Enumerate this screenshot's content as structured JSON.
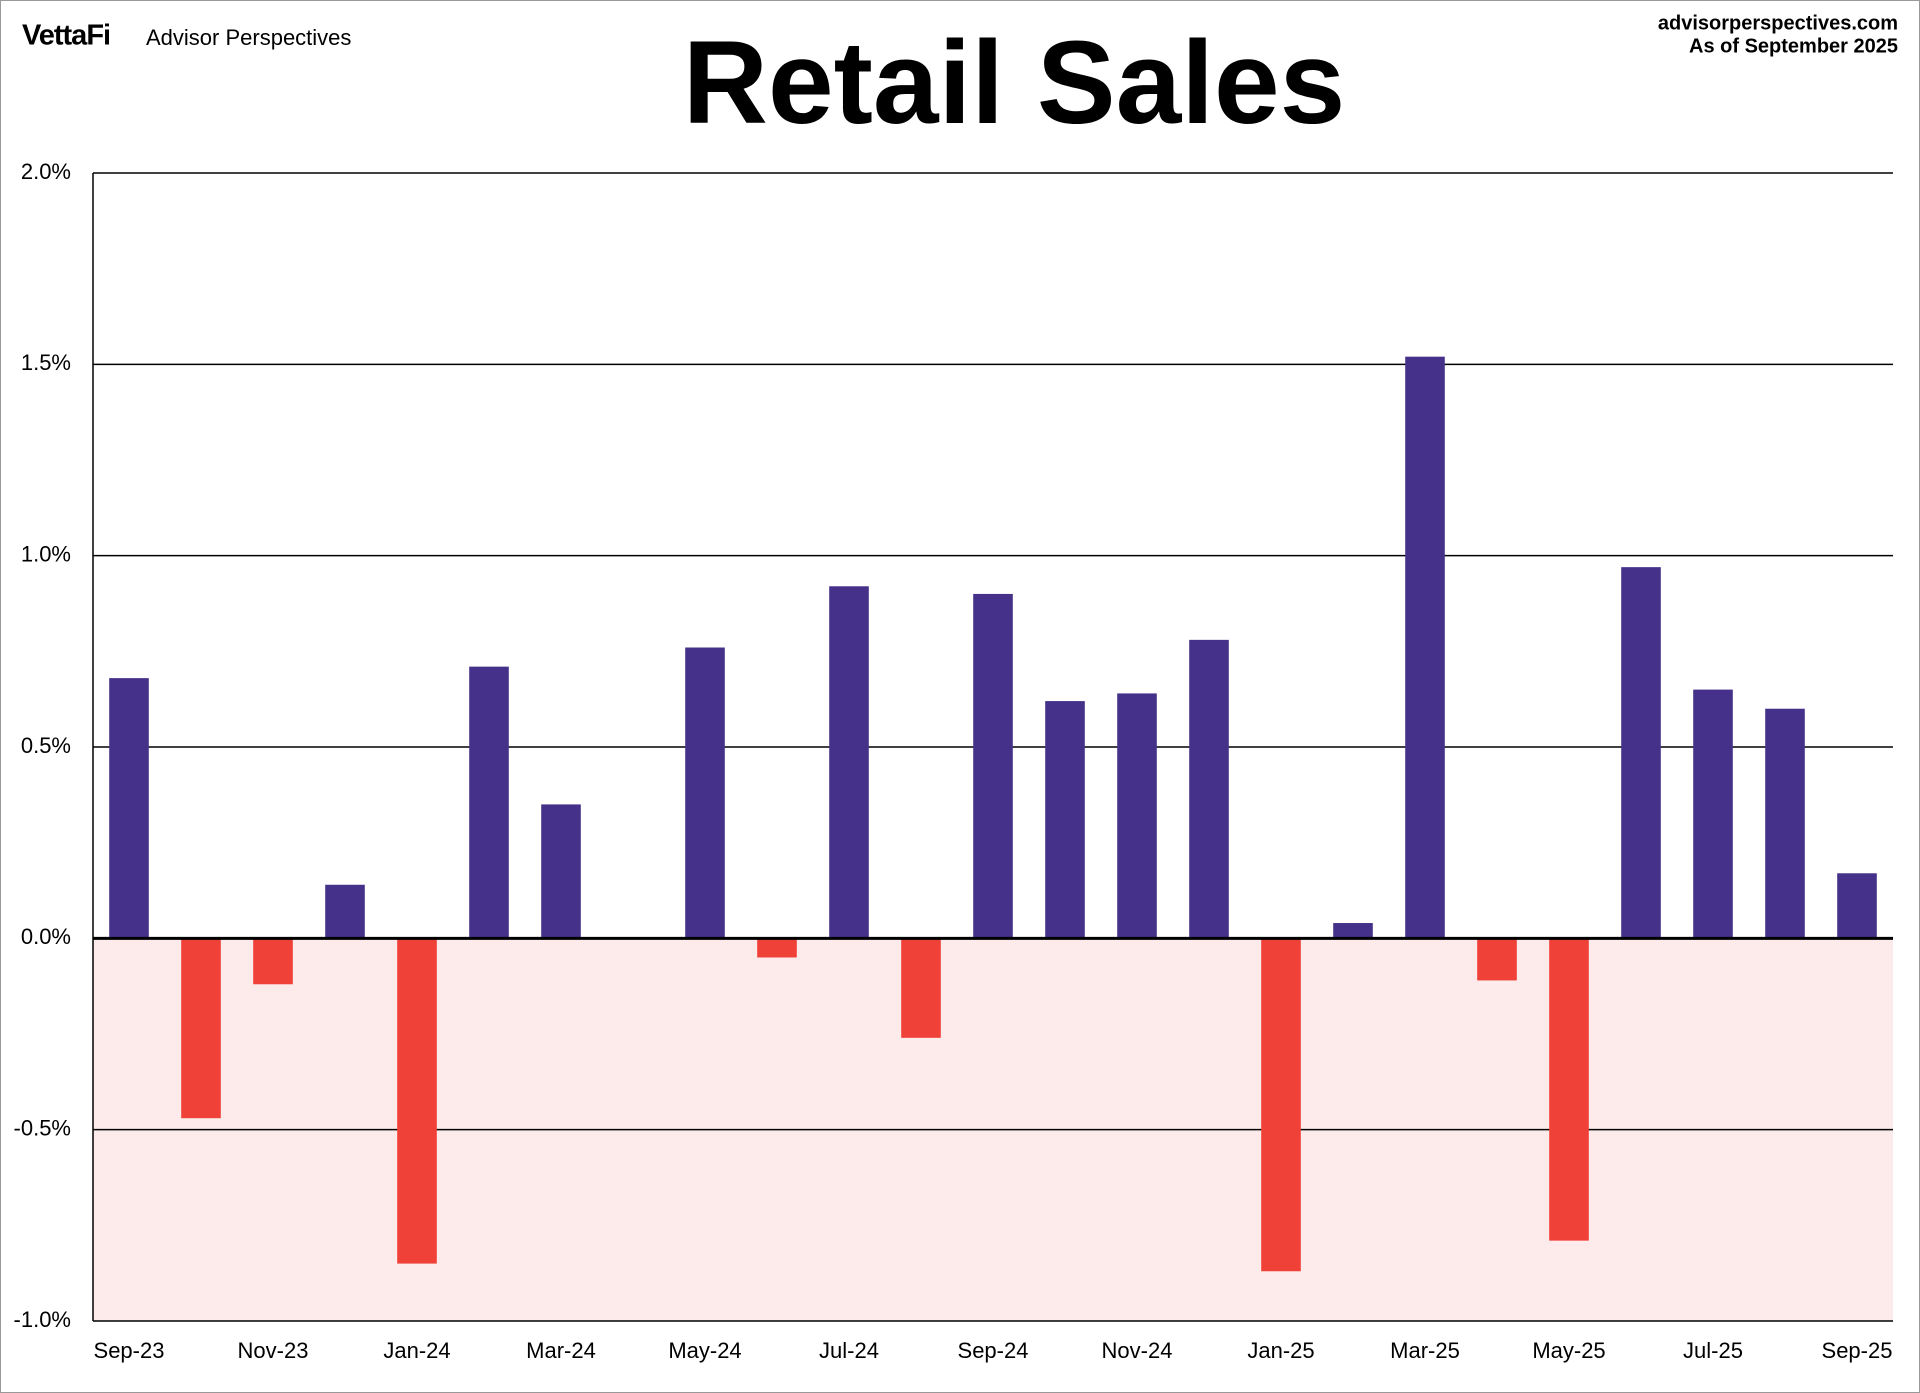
{
  "chart_data": {
    "type": "bar",
    "title": "Retail Sales",
    "brand": "VettaFi",
    "brand_subtitle": "Advisor Perspectives",
    "source": "advisorperspectives.com",
    "date_note": "As of September 2025",
    "categories": [
      "Sep-23",
      null,
      "Nov-23",
      null,
      "Jan-24",
      null,
      "Mar-24",
      null,
      "May-24",
      null,
      "Jul-24",
      null,
      "Sep-24",
      null,
      "Nov-24",
      null,
      "Jan-25",
      null,
      "Mar-25",
      null,
      "May-25",
      null,
      "Jul-25",
      null,
      "Sep-25"
    ],
    "values": [
      0.68,
      -0.47,
      -0.12,
      0.14,
      -0.85,
      0.71,
      0.35,
      0,
      0.76,
      -0.05,
      0.92,
      -0.26,
      0.9,
      0.62,
      0.64,
      0.78,
      -0.87,
      0.04,
      1.52,
      -0.11,
      -0.79,
      0.97,
      0.65,
      0.6,
      0.17
    ],
    "positive_color": "#46318a",
    "negative_color": "#ef4137",
    "negative_region_color": "#fdeaea",
    "ylim": [
      -1,
      2
    ],
    "yticks": [
      {
        "value": -1,
        "label": "-1.0%"
      },
      {
        "value": -0.5,
        "label": "-0.5%"
      },
      {
        "value": 0,
        "label": "0.0%"
      },
      {
        "value": 0.5,
        "label": "0.5%"
      },
      {
        "value": 1,
        "label": "1.0%"
      },
      {
        "value": 1.5,
        "label": "1.5%"
      },
      {
        "value": 2,
        "label": "2.0%"
      }
    ],
    "grid": true
  }
}
